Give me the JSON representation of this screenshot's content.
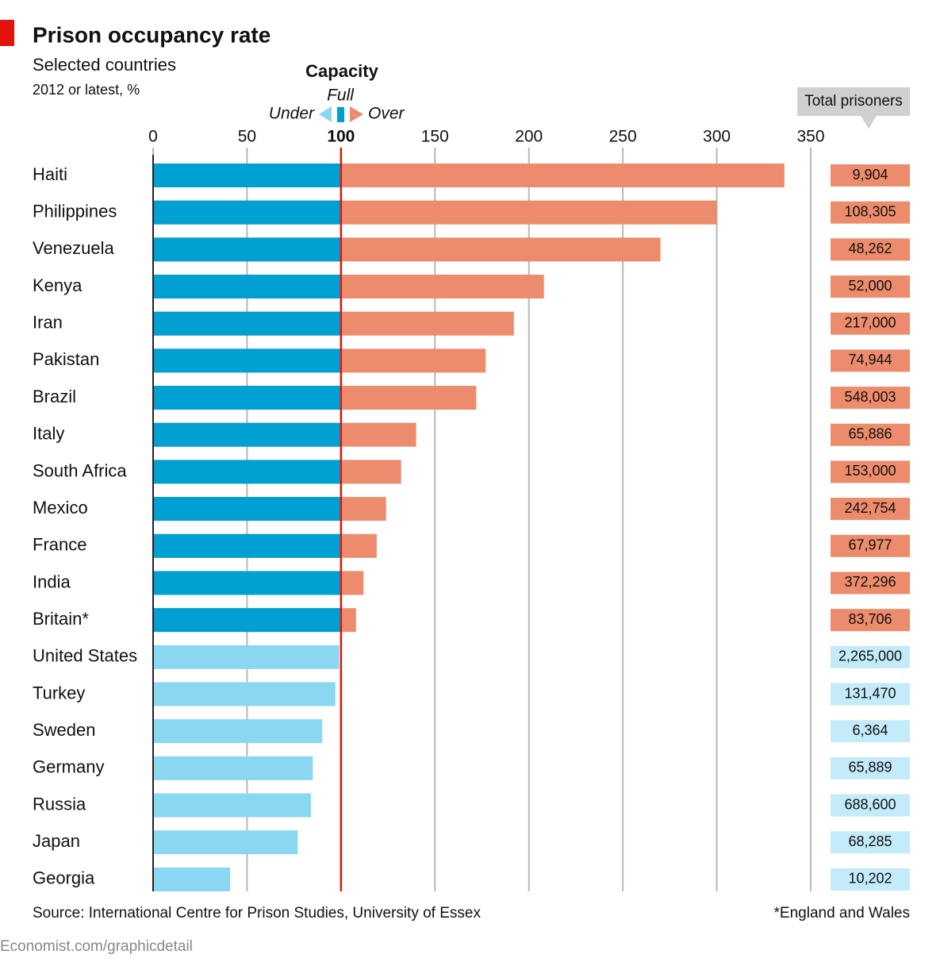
{
  "chart_data": {
    "type": "bar",
    "orientation": "horizontal",
    "title": "Prison occupancy rate",
    "subtitle": "Selected countries",
    "unit_note": "2012 or latest, %",
    "legend": {
      "title": "Capacity",
      "full": "Full",
      "under": "Under",
      "over": "Over"
    },
    "categories": [
      "Haiti",
      "Philippines",
      "Venezuela",
      "Kenya",
      "Iran",
      "Pakistan",
      "Brazil",
      "Italy",
      "South Africa",
      "Mexico",
      "France",
      "India",
      "Britain*",
      "United States",
      "Turkey",
      "Sweden",
      "Germany",
      "Russia",
      "Japan",
      "Georgia"
    ],
    "values": [
      336,
      300,
      270,
      208,
      192,
      177,
      172,
      140,
      132,
      124,
      119,
      112,
      108,
      99,
      97,
      90,
      85,
      84,
      77,
      41
    ],
    "colors": {
      "over": "#ec8c6c",
      "full": "#00a0d3",
      "under": "#8ad7f2",
      "over_box": "#ec8c6c",
      "under_box": "#c4ebf9"
    },
    "reference_line": {
      "value": 100,
      "color": "#e3120b"
    },
    "xlim": [
      0,
      350
    ],
    "xticks": [
      0,
      50,
      100,
      150,
      200,
      250,
      300,
      350
    ],
    "grid": true,
    "prisoners": {
      "name": "Total prisoners",
      "values": [
        9904,
        108305,
        48262,
        52000,
        217000,
        74944,
        548003,
        65886,
        153000,
        242754,
        67977,
        372296,
        83706,
        2265000,
        131470,
        6364,
        65889,
        688600,
        68285,
        10202
      ],
      "value_labels": [
        "9,904",
        "108,305",
        "48,262",
        "52,000",
        "217,000",
        "74,944",
        "548,003",
        "65,886",
        "153,000",
        "242,754",
        "67,977",
        "372,296",
        "83,706",
        "2,265,000",
        "131,470",
        "6,364",
        "65,889",
        "688,600",
        "68,285",
        "10,202"
      ]
    },
    "source": "Source: International Centre for Prison Studies, University of Essex",
    "footnote": "*England and Wales",
    "credit": "Economist.com/graphicdetail"
  }
}
